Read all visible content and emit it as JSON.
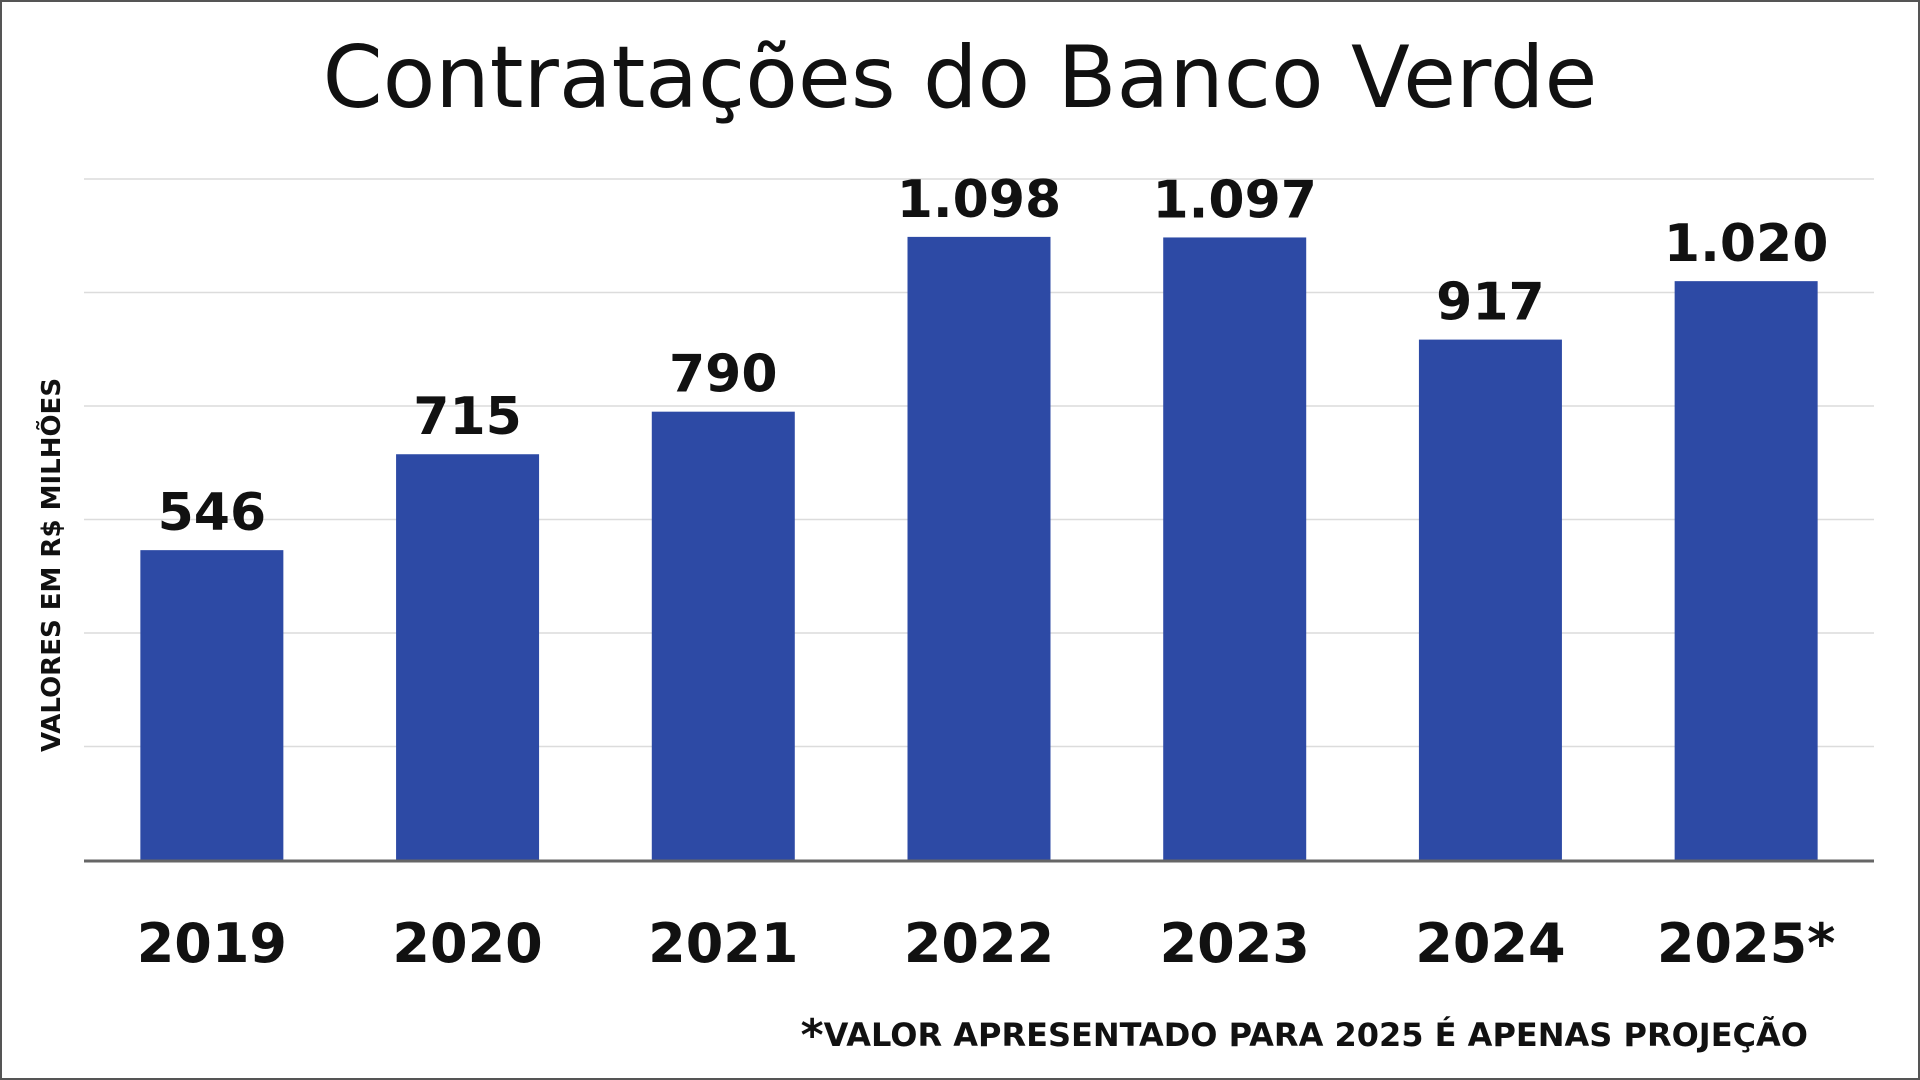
{
  "chart_data": {
    "type": "bar",
    "title": "Contratações do Banco Verde",
    "ylabel": "VALORES EM R$ MILHÕES",
    "xlabel": "",
    "categories": [
      "2019",
      "2020",
      "2021",
      "2022",
      "2023",
      "2024",
      "2025*"
    ],
    "values": [
      546,
      715,
      790,
      1098,
      1097,
      917,
      1020
    ],
    "value_labels": [
      "546",
      "715",
      "790",
      "1.098",
      "1.097",
      "917",
      "1.020"
    ],
    "ylim": [
      0,
      1200
    ],
    "grid": true,
    "bar_color": "#2d4aa5",
    "footnote_star": "*",
    "footnote": "VALOR APRESENTADO PARA 2025 É APENAS PROJEÇÃO"
  }
}
